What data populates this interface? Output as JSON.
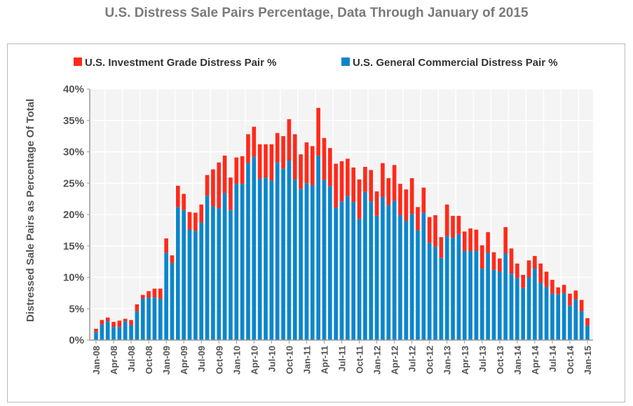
{
  "chart_data": {
    "type": "bar",
    "stacked": true,
    "title": "U.S. Distress Sale Pairs Percentage, Data Through January of 2015",
    "xlabel": "",
    "ylabel": "Distressed Sale Pairs as Percentage Of Total",
    "ylim": [
      0,
      40
    ],
    "yticks": [
      "0%",
      "5%",
      "10%",
      "15%",
      "20%",
      "25%",
      "30%",
      "35%",
      "40%"
    ],
    "grid": true,
    "legend": "top",
    "categories": [
      "Jan-08",
      "Feb-08",
      "Mar-08",
      "Apr-08",
      "May-08",
      "Jun-08",
      "Jul-08",
      "Aug-08",
      "Sep-08",
      "Oct-08",
      "Nov-08",
      "Dec-08",
      "Jan-09",
      "Feb-09",
      "Mar-09",
      "Apr-09",
      "May-09",
      "Jun-09",
      "Jul-09",
      "Aug-09",
      "Sep-09",
      "Oct-09",
      "Nov-09",
      "Dec-09",
      "Jan-10",
      "Feb-10",
      "Mar-10",
      "Apr-10",
      "May-10",
      "Jun-10",
      "Jul-10",
      "Aug-10",
      "Sep-10",
      "Oct-10",
      "Nov-10",
      "Dec-10",
      "Jan-11",
      "Feb-11",
      "Mar-11",
      "Apr-11",
      "May-11",
      "Jun-11",
      "Jul-11",
      "Aug-11",
      "Sep-11",
      "Oct-11",
      "Nov-11",
      "Dec-11",
      "Jan-12",
      "Feb-12",
      "Mar-12",
      "Apr-12",
      "May-12",
      "Jun-12",
      "Jul-12",
      "Aug-12",
      "Sep-12",
      "Oct-12",
      "Nov-12",
      "Dec-12",
      "Jan-13",
      "Feb-13",
      "Mar-13",
      "Apr-13",
      "May-13",
      "Jun-13",
      "Jul-13",
      "Aug-13",
      "Sep-13",
      "Oct-13",
      "Nov-13",
      "Dec-13",
      "Jan-14",
      "Feb-14",
      "Mar-14",
      "Apr-14",
      "May-14",
      "Jun-14",
      "Jul-14",
      "Aug-14",
      "Sep-14",
      "Oct-14",
      "Nov-14",
      "Dec-14",
      "Jan-15"
    ],
    "tick_labels": [
      "Jan-08",
      "Apr-08",
      "Jul-08",
      "Oct-08",
      "Jan-09",
      "Apr-09",
      "Jul-09",
      "Oct-09",
      "Jan-10",
      "Apr-10",
      "Jul-10",
      "Oct-10",
      "Jan-11",
      "Apr-11",
      "Jul-11",
      "Oct-11",
      "Jan-12",
      "Apr-12",
      "Jul-12",
      "Oct-12",
      "Jan-13",
      "Apr-13",
      "Jul-13",
      "Oct-13",
      "Jan-14",
      "Apr-14",
      "Jul-14",
      "Oct-14",
      "Jan-15"
    ],
    "series": [
      {
        "name": "U.S. General Commercial Distress Pair %",
        "color": "#0a86cc",
        "values": [
          1.3,
          2.5,
          3.0,
          2.1,
          2.1,
          3.0,
          2.4,
          4.6,
          6.6,
          6.8,
          6.8,
          6.6,
          13.9,
          12.3,
          21.2,
          20.7,
          17.6,
          17.4,
          18.7,
          23.0,
          21.3,
          21.0,
          23.4,
          20.7,
          24.9,
          24.9,
          28.2,
          29.2,
          25.7,
          25.9,
          25.4,
          28.3,
          27.3,
          28.6,
          25.6,
          24.1,
          25.0,
          24.7,
          29.4,
          25.5,
          24.5,
          21.1,
          22.1,
          23.0,
          22.0,
          19.3,
          23.6,
          22.1,
          19.8,
          22.8,
          21.5,
          22.2,
          19.9,
          19.0,
          20.1,
          17.5,
          20.3,
          15.5,
          14.9,
          13.1,
          16.6,
          16.3,
          16.9,
          14.2,
          14.2,
          14.2,
          11.4,
          13.9,
          11.2,
          10.9,
          13.8,
          10.6,
          9.9,
          8.3,
          10.0,
          11.4,
          9.1,
          8.5,
          7.4,
          7.3,
          7.5,
          5.5,
          6.5,
          4.6,
          2.3
        ]
      },
      {
        "name": "U.S. Investment Grade Distress Pair %",
        "color": "#ff2a1a",
        "values": [
          0.5,
          0.7,
          0.6,
          0.8,
          1.0,
          0.4,
          0.8,
          1.1,
          0.6,
          1.0,
          1.4,
          1.6,
          2.3,
          1.2,
          3.4,
          2.6,
          2.8,
          2.9,
          2.9,
          3.3,
          5.9,
          7.3,
          6.0,
          5.2,
          4.2,
          4.4,
          4.6,
          4.8,
          5.5,
          5.3,
          5.8,
          4.7,
          5.2,
          6.6,
          7.2,
          5.5,
          6.5,
          6.2,
          7.6,
          6.7,
          6.1,
          7.0,
          6.4,
          5.9,
          5.5,
          6.3,
          4.0,
          5.0,
          3.9,
          5.4,
          4.3,
          5.7,
          5.0,
          5.0,
          5.7,
          3.7,
          4.0,
          4.1,
          5.0,
          3.3,
          5.0,
          3.5,
          2.9,
          3.1,
          3.6,
          3.4,
          3.7,
          3.3,
          2.8,
          2.1,
          4.2,
          4.0,
          2.3,
          2.1,
          2.7,
          2.0,
          3.1,
          2.4,
          2.2,
          1.1,
          1.3,
          1.9,
          1.4,
          1.8,
          1.2
        ]
      }
    ]
  }
}
